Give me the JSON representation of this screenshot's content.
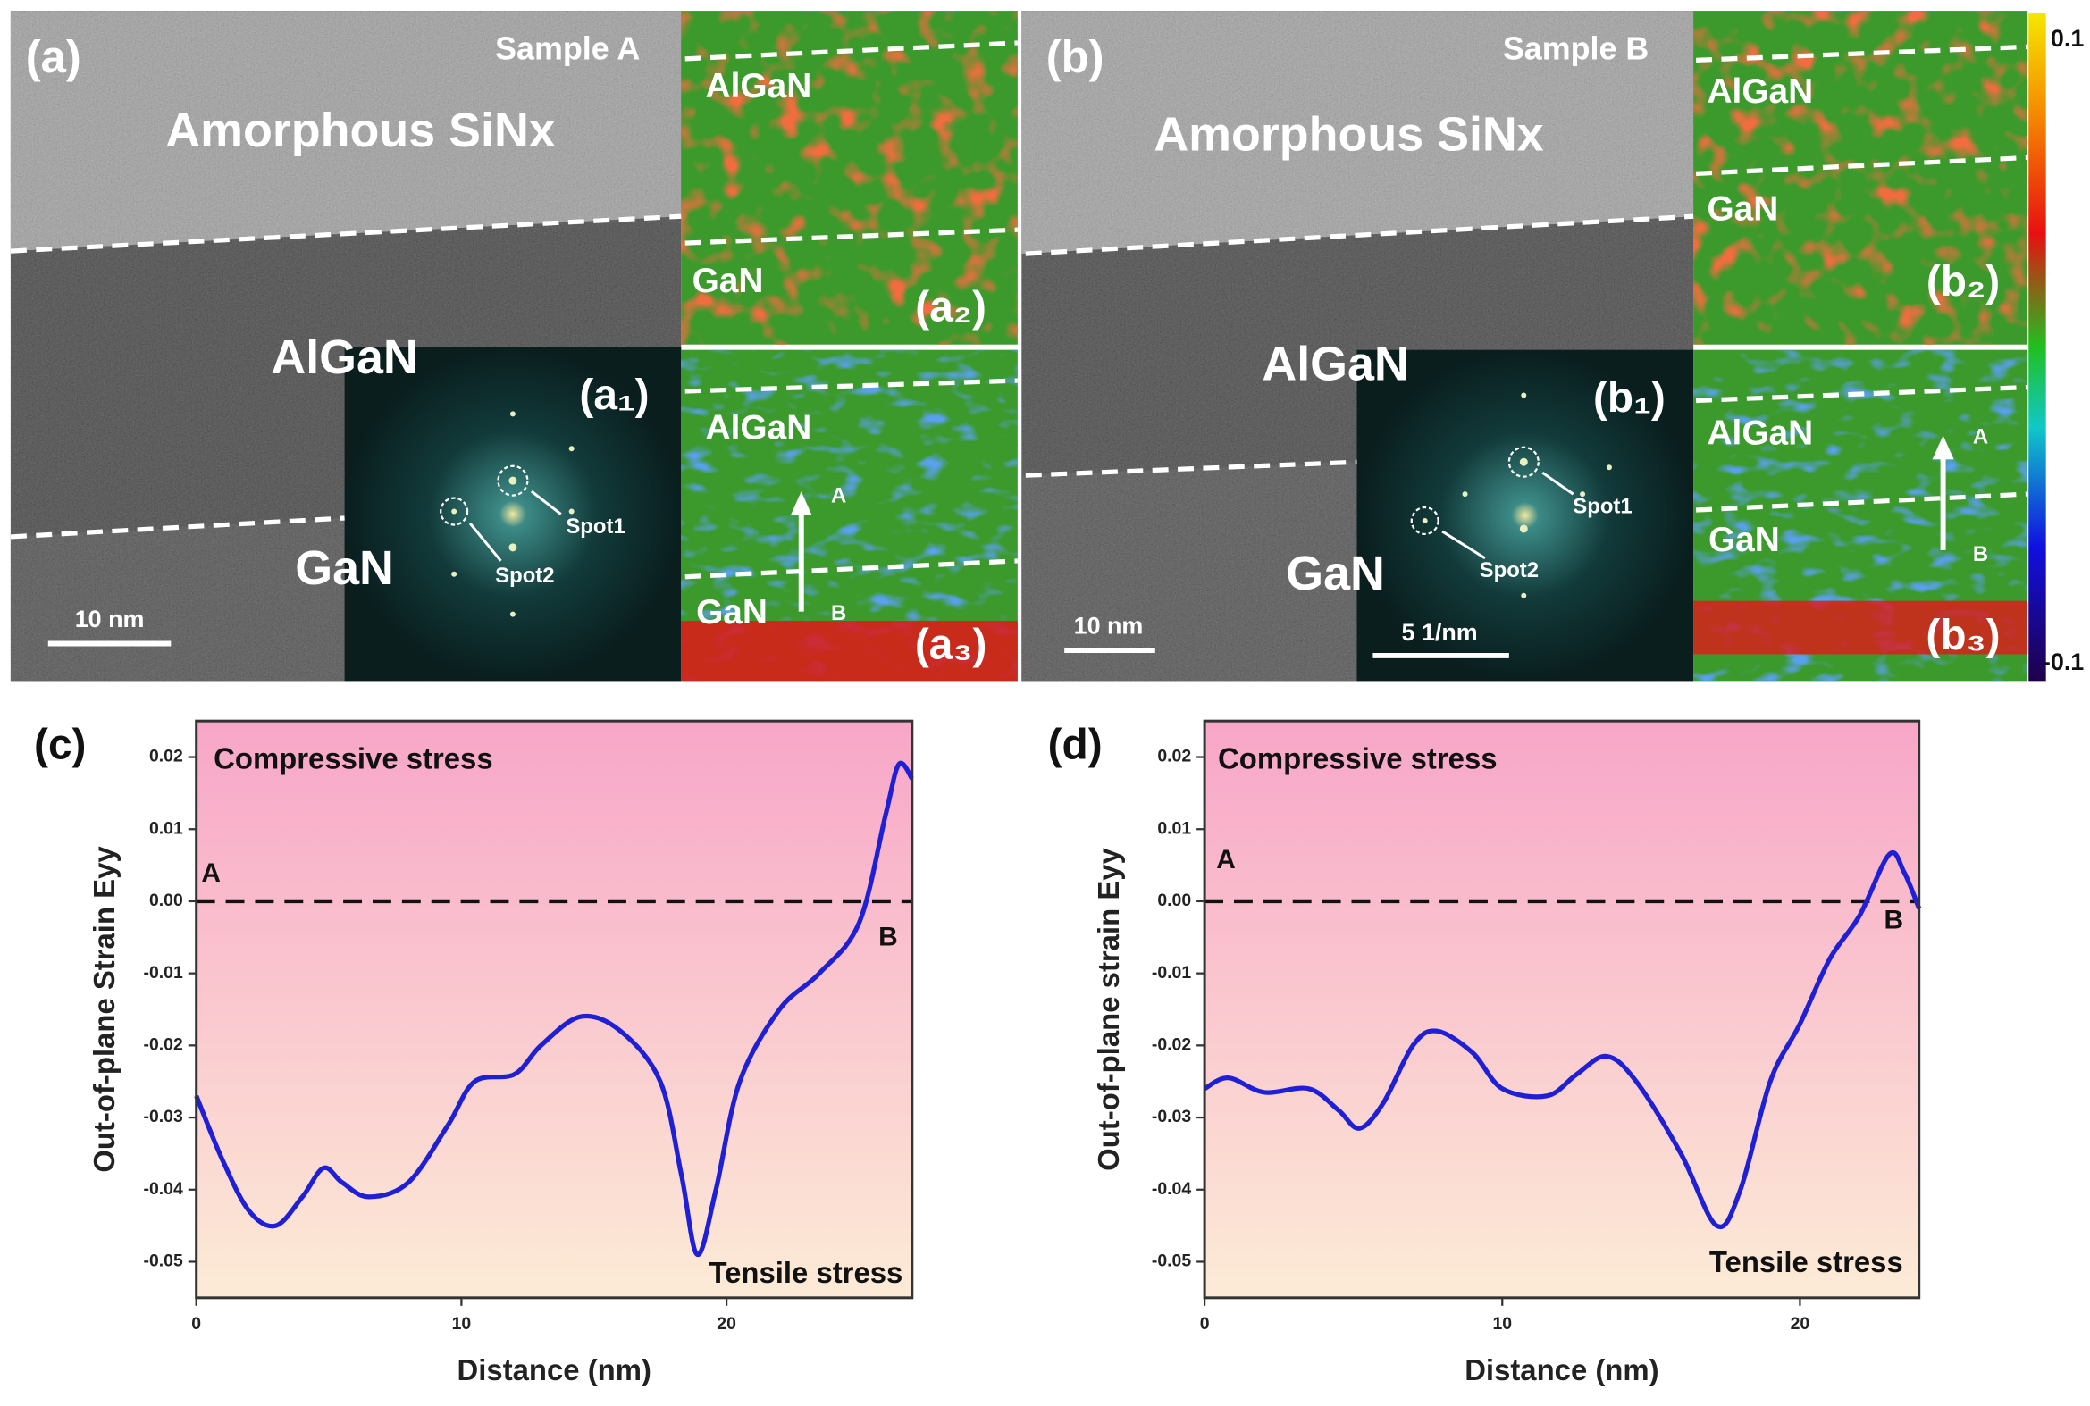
{
  "panels": [
    {
      "label": "(a)",
      "sample": "Sample A",
      "layer_top": "Amorphous SiNx",
      "layer_mid": "AlGaN",
      "layer_bottom": "GaN",
      "scale_bar": "10 nm",
      "fft": {
        "label": "(a₁)",
        "spot1": "Spot1",
        "spot2": "Spot2"
      },
      "map_top": {
        "label": "(a₂)",
        "layer_top": "AlGaN",
        "layer_bottom": "GaN"
      },
      "map_bottom": {
        "label": "(a₃)",
        "layer_top": "AlGaN",
        "layer_bottom": "GaN",
        "start": "A",
        "end": "B"
      }
    },
    {
      "label": "(b)",
      "sample": "Sample B",
      "layer_top": "Amorphous SiNx",
      "layer_mid": "AlGaN",
      "layer_bottom": "GaN",
      "scale_bar": "10 nm",
      "fft": {
        "label": "(b₁)",
        "spot1": "Spot1",
        "spot2": "Spot2",
        "scale_bar": "5 1/nm"
      },
      "map_top": {
        "label": "(b₂)",
        "layer_top": "AlGaN",
        "layer_bottom": "GaN"
      },
      "map_bottom": {
        "label": "(b₃)",
        "layer_top": "AlGaN",
        "layer_bottom": "GaN",
        "start": "A",
        "end": "B"
      }
    }
  ],
  "colorbar": {
    "range": [
      -0.1,
      0.1
    ]
  },
  "chart_data": [
    {
      "type": "line",
      "label": "(c)",
      "xlabel": "Distance (nm)",
      "ylabel": "Out-of-plane Strain Eyy",
      "annotations": [
        "Compressive stress",
        "Tensile stress",
        "A",
        "B"
      ],
      "reference_line": 0,
      "background": [
        "#f8a6c8",
        "#fcebd6"
      ],
      "xlim": [
        0,
        27
      ],
      "ylim": [
        -0.055,
        0.025
      ],
      "xticks": [
        0,
        10,
        20
      ],
      "yticks": [
        0.02,
        0.01,
        {
          "value": 0,
          "label": "0.00"
        },
        -0.01,
        -0.02,
        -0.03,
        -0.04,
        -0.05
      ],
      "series": [
        {
          "color": "#1f1fd6",
          "x": [
            0,
            1,
            2,
            3,
            4,
            4.8,
            5.5,
            6.5,
            8,
            9.5,
            10.5,
            12,
            13,
            14.5,
            16,
            17.5,
            18.3,
            18.9,
            19.6,
            20.5,
            22,
            23.5,
            25,
            26,
            26.5,
            27
          ],
          "values": [
            -0.027,
            -0.036,
            -0.043,
            -0.045,
            -0.041,
            -0.037,
            -0.039,
            -0.041,
            -0.039,
            -0.031,
            -0.025,
            -0.024,
            -0.02,
            -0.016,
            -0.018,
            -0.025,
            -0.038,
            -0.049,
            -0.04,
            -0.025,
            -0.015,
            -0.01,
            -0.003,
            0.012,
            0.019,
            0.017
          ]
        }
      ]
    },
    {
      "type": "line",
      "label": "(d)",
      "xlabel": "Distance (nm)",
      "ylabel": "Out-of-plane strain Eyy",
      "annotations": [
        "Compressive stress",
        "Tensile stress",
        "A",
        "B"
      ],
      "reference_line": 0,
      "background": [
        "#f8a6c8",
        "#fcebd6"
      ],
      "xlim": [
        0,
        24
      ],
      "ylim": [
        -0.055,
        0.025
      ],
      "xticks": [
        0,
        10,
        20
      ],
      "yticks": [
        0.02,
        0.01,
        {
          "value": 0,
          "label": "0.00"
        },
        -0.01,
        -0.02,
        -0.03,
        -0.04,
        -0.05
      ],
      "series": [
        {
          "color": "#1f1fd6",
          "x": [
            0,
            0.8,
            2,
            3.5,
            4.5,
            5.2,
            6,
            7,
            7.8,
            9,
            10,
            11.5,
            12.5,
            13.5,
            14.5,
            16,
            17.2,
            18,
            19,
            20,
            21,
            22,
            23,
            23.5,
            24
          ],
          "values": [
            -0.026,
            -0.0245,
            -0.0265,
            -0.026,
            -0.029,
            -0.0315,
            -0.028,
            -0.02,
            -0.018,
            -0.021,
            -0.026,
            -0.027,
            -0.024,
            -0.0215,
            -0.025,
            -0.035,
            -0.045,
            -0.04,
            -0.025,
            -0.017,
            -0.008,
            -0.002,
            0.0065,
            0.004,
            -0.001
          ]
        }
      ]
    }
  ]
}
